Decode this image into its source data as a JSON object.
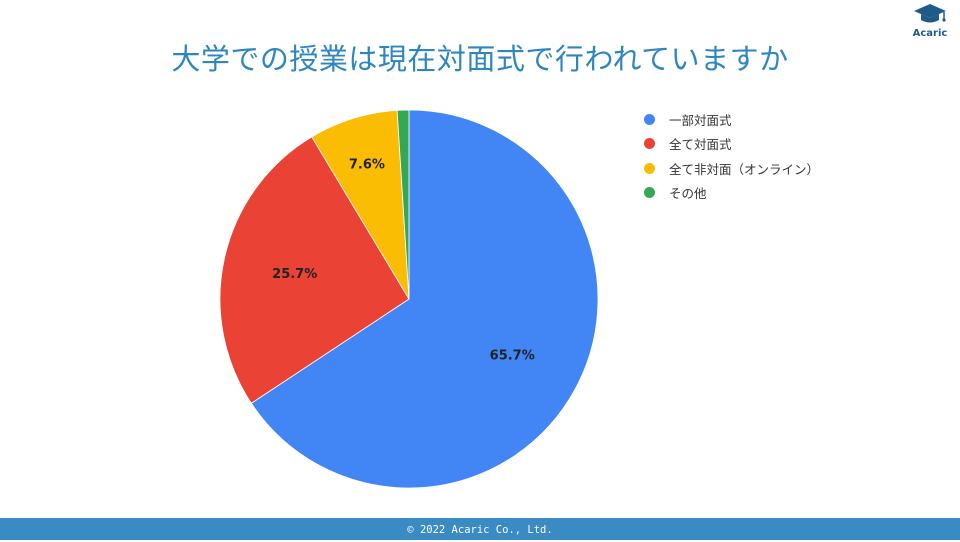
{
  "header": {
    "title": "大学での授業は現在対面式で行われていますか"
  },
  "logo": {
    "text": "Acaric",
    "icon": "graduation-cap-icon",
    "color": "#1f5a8a"
  },
  "chart_data": {
    "type": "pie",
    "title": "大学での授業は現在対面式で行われていますか",
    "categories": [
      "一部対面式",
      "全て対面式",
      "全て非対面（オンライン）",
      "その他"
    ],
    "values": [
      65.7,
      25.7,
      7.6,
      1.0
    ],
    "labels": [
      "65.7%",
      "25.7%",
      "7.6%",
      ""
    ],
    "colors": [
      "#4285f4",
      "#ea4335",
      "#fbbc04",
      "#34a853"
    ],
    "legend": "right"
  },
  "footer": {
    "text": "© 2022 Acaric Co., Ltd."
  }
}
